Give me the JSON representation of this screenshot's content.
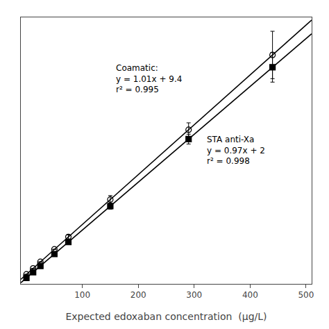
{
  "chart_data": {
    "type": "scatter",
    "xlabel": "Expected edoxaban concentration  (μg/L)",
    "xlim": [
      -10,
      510
    ],
    "ylim": [
      -10,
      530
    ],
    "xticks": [
      100,
      200,
      300,
      400,
      500
    ],
    "yticks": [],
    "tick_labels": "x",
    "grid": false,
    "series": [
      {
        "type": "line",
        "line_style": "solid",
        "color": "black",
        "x": [
          -10,
          510
        ],
        "values": [
          -0.7,
          524.5
        ]
      },
      {
        "type": "line",
        "line_style": "solid",
        "color": "black",
        "x": [
          -10,
          510
        ],
        "values": [
          -7.7,
          496.7
        ]
      },
      {
        "type": "scatter",
        "marker": "circle-open",
        "color": "black",
        "x": [
          0,
          12,
          25,
          50,
          75,
          150,
          290,
          440
        ],
        "values": [
          9.4,
          21.5,
          34.7,
          60.0,
          85.2,
          160.9,
          302.3,
          453.8
        ],
        "error": [
          0,
          0,
          0,
          0,
          4,
          8,
          14,
          48
        ]
      },
      {
        "type": "scatter",
        "marker": "square",
        "color": "black",
        "x": [
          0,
          12,
          25,
          50,
          75,
          150,
          290,
          440
        ],
        "values": [
          2.0,
          13.6,
          26.3,
          50.5,
          74.7,
          147.5,
          283.3,
          428.8
        ],
        "error": [
          0,
          0,
          0,
          0,
          3,
          6,
          10,
          30
        ]
      }
    ],
    "annotations": [
      {
        "text": "Coamatic:\ny = 1.01x + 9.4\nr² = 0.995",
        "x": 158,
        "y": 440
      },
      {
        "text": "STA anti-Xa\ny = 0.97x + 2\nr² = 0.998",
        "x": 320,
        "y": 295
      }
    ]
  }
}
